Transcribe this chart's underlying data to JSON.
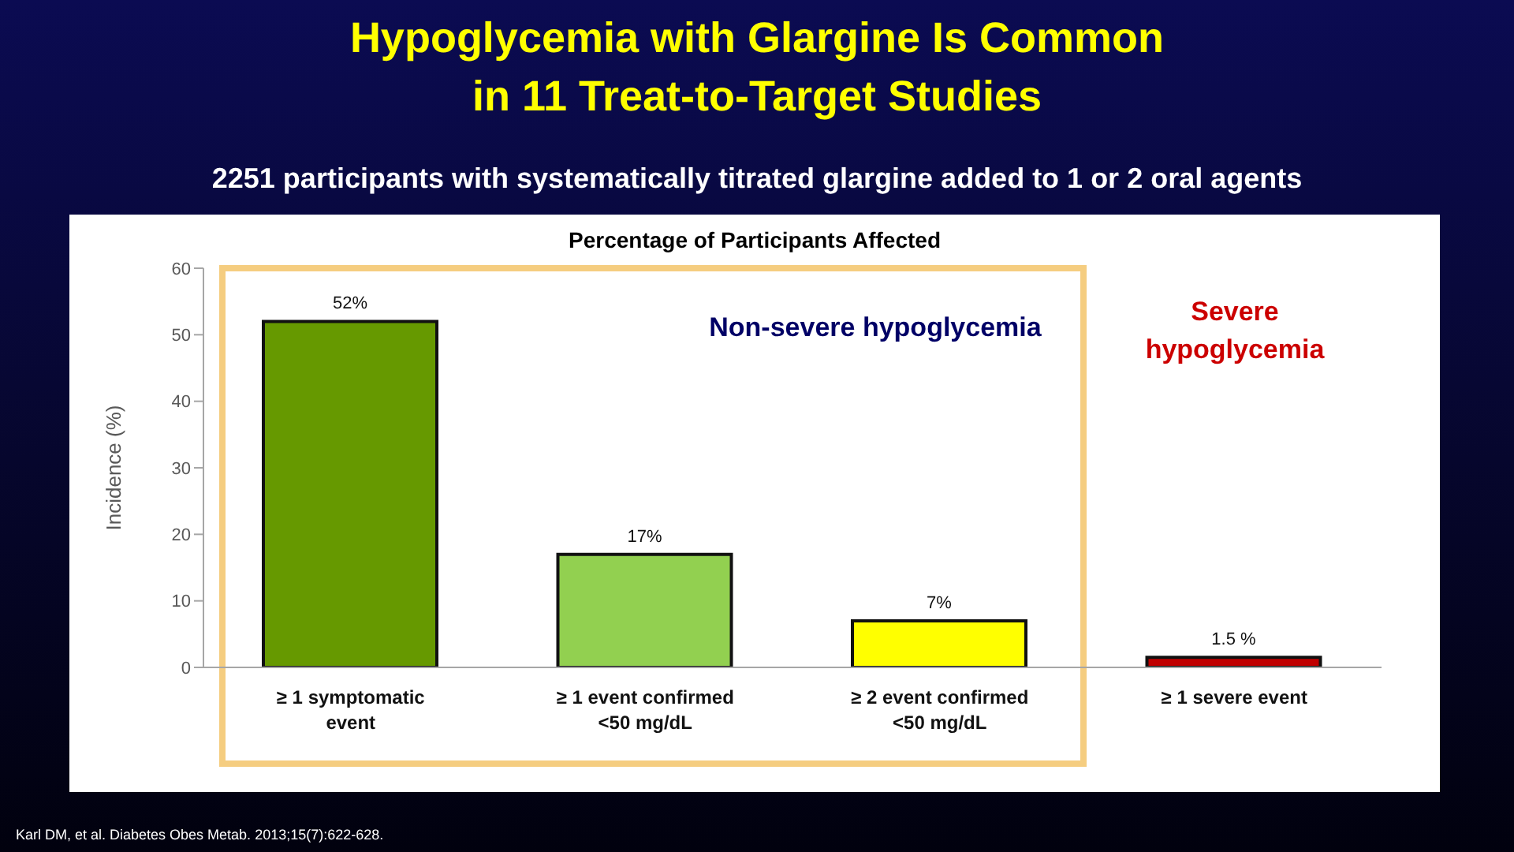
{
  "chart_data": {
    "type": "bar",
    "title": "Hypoglycemia with Glargine Is Common in 11 Treat-to-Target Studies",
    "subtitle": "2251 participants with systematically titrated glargine added to 1 or 2 oral agents",
    "ylabel": "Incidence (%)",
    "categories": [
      "≥ 1 symptomatic event",
      "≥ 1 event confirmed <50 mg/dL",
      "≥ 2 event confirmed <50 mg/dL",
      "≥ 1 severe event"
    ],
    "values": [
      52,
      17,
      7,
      1.5
    ],
    "colors": [
      "#669900",
      "#92d050",
      "#ffff00",
      "#c00000"
    ],
    "value_labels": [
      "52%",
      "17%",
      "7%",
      "1.5 %"
    ],
    "ylim": [
      0,
      60
    ],
    "yticks": [
      0,
      10,
      20,
      30,
      40,
      50,
      60
    ],
    "annotations": [
      "Percentage of Participants Affected",
      "Non-severe hypoglycemia",
      "Severe hypoglycemia",
      "Karl DM, et al. Diabetes Obes Metab. 2013;15(7):622-628."
    ]
  }
}
